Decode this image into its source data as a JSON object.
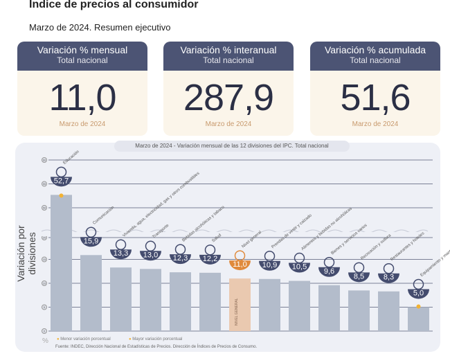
{
  "header": {
    "title": "Índice de precios al consumidor",
    "subtitle": "Marzo de 2024. Resumen ejecutivo"
  },
  "cards": [
    {
      "title": "Variación % mensual",
      "scope": "Total nacional",
      "value": "11,0",
      "date": "Marzo de 2024"
    },
    {
      "title": "Variación % interanual",
      "scope": "Total nacional",
      "value": "287,9",
      "date": "Marzo de 2024"
    },
    {
      "title": "Variación % acumulada",
      "scope": "Total nacional",
      "value": "51,6",
      "date": "Marzo de 2024"
    }
  ],
  "chart_data": {
    "type": "bar",
    "title": "Marzo de 2024 - Variación mensual de las 12 divisiones del IPC. Total nacional",
    "ylabel": "Variación por divisiones",
    "yunit": "%",
    "ylim": [
      0,
      60
    ],
    "axis_break": [
      20,
      50
    ],
    "yticks": [
      0,
      5,
      10,
      15,
      20,
      50,
      55,
      60
    ],
    "grid": true,
    "categories": [
      "Educación",
      "Comunicación",
      "Vivienda, agua, electricidad, gas y otros combustibles",
      "Transporte",
      "Bebidas alcohólicas y tabaco",
      "Salud",
      "Nivel general",
      "Prendas de vestir y calzado",
      "Alimentos y bebidas no alcohólicas",
      "Bienes y servicios varios",
      "Recreación y cultura",
      "Restaurantes y hoteles",
      "Equipamiento y mantenimiento del hogar"
    ],
    "values": [
      52.7,
      15.9,
      13.3,
      13.0,
      12.3,
      12.2,
      11.0,
      10.9,
      10.5,
      9.6,
      8.5,
      8.3,
      5.0
    ],
    "value_labels": [
      "52,7",
      "15,9",
      "13,3",
      "13,0",
      "12,3",
      "12,2",
      "11,0",
      "10,9",
      "10,5",
      "9,6",
      "8,5",
      "8,3",
      "5,0"
    ],
    "highlight_index": 6,
    "bar_label_in_bar": "NIVEL GENERAL",
    "colors": {
      "bar": "#b3bccb",
      "highlight": "#eac9b0",
      "badge": "#444c6e",
      "badge_highlight": "#e08a3c",
      "dot": "#f2b233"
    },
    "legend": [
      "Menor variación porcentual",
      "Mayor variación porcentual"
    ]
  },
  "source": "Fuente: INDEC, Dirección Nacional de Estadísticas de Precios. Dirección de Índices de Precios de Consumo."
}
